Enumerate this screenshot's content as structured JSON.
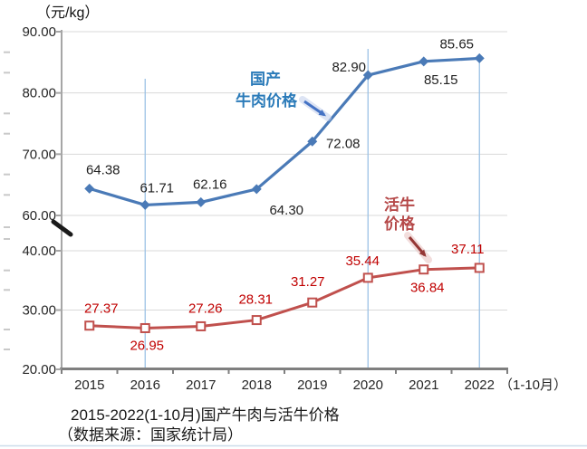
{
  "labels": {
    "unit": "（元/kg）",
    "x_suffix": "（1-10月）"
  },
  "caption": {
    "line1": "2015-2022(1-10月)国产牛肉与活牛价格",
    "line2": "（数据来源：国家统计局）"
  },
  "chart_data": {
    "type": "line",
    "title": "2015-2022(1-10月)国产牛肉与活牛价格",
    "source": "（数据来源：国家统计局）",
    "unit": "元/kg",
    "categories": [
      "2015",
      "2016",
      "2017",
      "2018",
      "2019",
      "2020",
      "2021",
      "2022"
    ],
    "last_category_suffix": "（1-10月）",
    "grid": true,
    "y_axis": {
      "ticks": [
        90,
        80,
        70,
        60,
        40,
        30,
        20
      ],
      "tick_labels": [
        "90.00",
        "80.00",
        "70.00",
        "60.00",
        "40.00",
        "30.00",
        "20.00"
      ],
      "has_break": true,
      "break_between": [
        40,
        60
      ]
    },
    "series": [
      {
        "name": "国产牛肉价格",
        "name_lines": [
          "国产",
          "牛肉价格"
        ],
        "marker": "diamond",
        "color": "#4a7ab7",
        "label_color": "#1f1f1f",
        "values": [
          64.38,
          61.71,
          62.16,
          64.3,
          72.08,
          82.9,
          85.15,
          85.65
        ]
      },
      {
        "name": "活牛价格",
        "name_lines": [
          "活牛",
          "价格"
        ],
        "marker": "square",
        "color": "#c0504d",
        "label_color": "#c00000",
        "values": [
          27.37,
          26.95,
          27.26,
          28.31,
          31.27,
          35.44,
          36.84,
          37.11
        ]
      }
    ],
    "guide_lines_at_categories": [
      "2016",
      "2020",
      "2022"
    ]
  },
  "colors": {
    "grid": "#d9d9d9",
    "y_axis": "#a6a6a6",
    "x_axis": "#7f7f7f",
    "guide_line": "#9cc2e5",
    "edge_dash": "#c9c9c9",
    "series1_label_text": "#2b7bb9",
    "series2_label_text": "#b54848",
    "series1_arrow": "#4472c4",
    "series1_arrow_halo": "#c3cfec",
    "series2_arrow": "#953735",
    "series2_arrow_halo": "#e6bcba",
    "break_mark": "#1a1a1a",
    "page_divider": "#ccdcea"
  }
}
